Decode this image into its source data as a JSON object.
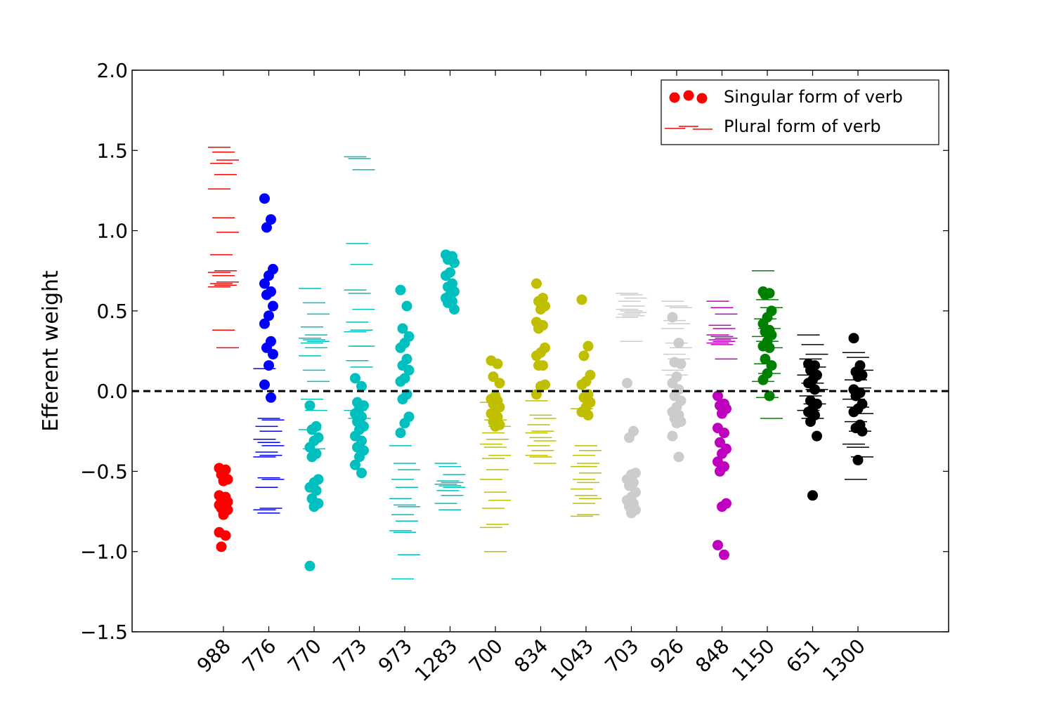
{
  "chart_data": {
    "type": "scatter",
    "title": "",
    "xlabel": "",
    "ylabel": "Efferent weight",
    "ylim": [
      -1.5,
      2.0
    ],
    "yticks": [
      "2.0",
      "1.5",
      "1.0",
      "0.5",
      "0.0",
      "−0.5",
      "−1.0",
      "−1.5"
    ],
    "ytick_values": [
      2.0,
      1.5,
      1.0,
      0.5,
      0.0,
      -0.5,
      -1.0,
      -1.5
    ],
    "reference_line": {
      "y": 0.0,
      "style": "dashed",
      "color": "#000000"
    },
    "legend": {
      "placement": "top-right",
      "entries": [
        {
          "label": "Singular form of verb",
          "marker": "circle",
          "color": "#ff0000"
        },
        {
          "label": "Plural form of verb",
          "marker": "hline",
          "color": "#ff0000"
        }
      ]
    },
    "categories": [
      "988",
      "776",
      "770",
      "773",
      "973",
      "1283",
      "700",
      "834",
      "1043",
      "703",
      "926",
      "848",
      "1150",
      "651",
      "1300"
    ],
    "series": [
      {
        "category": "988",
        "color": "#ff0000",
        "singular": [
          -0.48,
          -0.49,
          -0.52,
          -0.55,
          -0.56,
          -0.65,
          -0.66,
          -0.67,
          -0.69,
          -0.7,
          -0.71,
          -0.72,
          -0.73,
          -0.74,
          -0.77,
          -0.88,
          -0.9,
          -0.97
        ],
        "plural": [
          1.52,
          1.49,
          1.44,
          1.42,
          1.35,
          1.26,
          1.08,
          0.99,
          0.85,
          0.75,
          0.74,
          0.72,
          0.68,
          0.67,
          0.66,
          0.65,
          0.38,
          0.27
        ]
      },
      {
        "category": "776",
        "color": "#0000ff",
        "singular": [
          1.2,
          1.07,
          1.02,
          0.76,
          0.72,
          0.67,
          0.62,
          0.6,
          0.53,
          0.47,
          0.42,
          0.31,
          0.27,
          0.23,
          0.16,
          0.04,
          -0.04
        ],
        "plural": [
          0.14,
          -0.17,
          -0.18,
          -0.22,
          -0.25,
          -0.3,
          -0.32,
          -0.34,
          -0.38,
          -0.4,
          -0.41,
          -0.54,
          -0.55,
          -0.6,
          -0.73,
          -0.74,
          -0.76
        ]
      },
      {
        "category": "770",
        "color": "#00bfbf",
        "singular": [
          -0.09,
          -0.22,
          -0.24,
          -0.29,
          -0.31,
          -0.35,
          -0.39,
          -0.41,
          -0.55,
          -0.57,
          -0.6,
          -0.62,
          -0.67,
          -0.7,
          -0.72,
          -1.09
        ],
        "plural": [
          0.64,
          0.55,
          0.48,
          0.4,
          0.35,
          0.33,
          0.32,
          0.31,
          0.3,
          0.27,
          0.22,
          0.13,
          0.06,
          -0.05,
          -0.12,
          -0.24,
          -0.36
        ]
      },
      {
        "category": "773",
        "color": "#00bfbf",
        "singular": [
          0.08,
          0.03,
          -0.07,
          -0.09,
          -0.11,
          -0.14,
          -0.16,
          -0.19,
          -0.22,
          -0.24,
          -0.28,
          -0.31,
          -0.35,
          -0.37,
          -0.41,
          -0.46,
          -0.51
        ],
        "plural": [
          1.46,
          1.45,
          1.38,
          0.92,
          0.79,
          0.63,
          0.61,
          0.51,
          0.43,
          0.38,
          0.37,
          0.28,
          0.28,
          0.19,
          0.15,
          -0.12,
          -0.17
        ]
      },
      {
        "category": "973",
        "color": "#00bfbf",
        "singular": [
          0.63,
          0.53,
          0.39,
          0.34,
          0.3,
          0.27,
          0.2,
          0.16,
          0.13,
          0.08,
          0.06,
          -0.02,
          -0.05,
          -0.16,
          -0.2,
          -0.26
        ],
        "plural": [
          -0.34,
          -0.45,
          -0.49,
          -0.55,
          -0.6,
          -0.67,
          -0.71,
          -0.72,
          -0.77,
          -0.81,
          -0.87,
          -0.88,
          -1.02,
          -1.17
        ]
      },
      {
        "category": "1283",
        "color": "#00bfbf",
        "singular": [
          0.85,
          0.84,
          0.82,
          0.8,
          0.74,
          0.72,
          0.67,
          0.65,
          0.62,
          0.6,
          0.58,
          0.56,
          0.55,
          0.51
        ],
        "plural": [
          -0.45,
          -0.47,
          -0.52,
          -0.56,
          -0.57,
          -0.58,
          -0.59,
          -0.6,
          -0.62,
          -0.65,
          -0.7,
          -0.74
        ]
      },
      {
        "category": "700",
        "color": "#bfbf00",
        "singular": [
          0.19,
          0.17,
          0.09,
          0.05,
          -0.03,
          -0.05,
          -0.06,
          -0.08,
          -0.1,
          -0.12,
          -0.14,
          -0.16,
          -0.19,
          -0.21,
          -0.22
        ],
        "plural": [
          -0.07,
          -0.18,
          -0.22,
          -0.26,
          -0.3,
          -0.33,
          -0.35,
          -0.4,
          -0.42,
          -0.49,
          -0.55,
          -0.63,
          -0.68,
          -0.73,
          -0.83,
          -0.85,
          -1.0
        ]
      },
      {
        "category": "834",
        "color": "#bfbf00",
        "singular": [
          0.67,
          0.58,
          0.56,
          0.53,
          0.51,
          0.43,
          0.41,
          0.39,
          0.27,
          0.24,
          0.22,
          0.16,
          0.16,
          0.04,
          0.03,
          -0.02
        ],
        "plural": [
          -0.06,
          -0.15,
          -0.17,
          -0.21,
          -0.25,
          -0.26,
          -0.29,
          -0.31,
          -0.34,
          -0.37,
          -0.4,
          -0.41,
          -0.45
        ]
      },
      {
        "category": "1043",
        "color": "#bfbf00",
        "singular": [
          0.57,
          0.28,
          0.22,
          0.1,
          0.06,
          0.04,
          -0.02,
          -0.04,
          -0.07,
          -0.1,
          -0.13,
          -0.15
        ],
        "plural": [
          -0.11,
          -0.34,
          -0.37,
          -0.4,
          -0.45,
          -0.47,
          -0.47,
          -0.51,
          -0.55,
          -0.57,
          -0.61,
          -0.65,
          -0.67,
          -0.7,
          -0.77,
          -0.78
        ]
      },
      {
        "category": "703",
        "color": "#cccccc",
        "singular": [
          0.05,
          -0.25,
          -0.29,
          -0.51,
          -0.52,
          -0.55,
          -0.57,
          -0.59,
          -0.63,
          -0.66,
          -0.68,
          -0.7,
          -0.72,
          -0.74,
          -0.76
        ],
        "plural": [
          0.61,
          0.6,
          0.58,
          0.56,
          0.53,
          0.51,
          0.5,
          0.49,
          0.48,
          0.47,
          0.46,
          0.31
        ]
      },
      {
        "category": "926",
        "color": "#cccccc",
        "singular": [
          0.46,
          0.3,
          0.18,
          0.17,
          0.09,
          0.05,
          0.01,
          -0.03,
          -0.06,
          -0.1,
          -0.13,
          -0.15,
          -0.17,
          -0.19,
          -0.2,
          -0.28,
          -0.41
        ],
        "plural": [
          0.56,
          0.53,
          0.52,
          0.44,
          0.42,
          0.39,
          0.3,
          0.27,
          0.23,
          0.2,
          0.13,
          0.1
        ]
      },
      {
        "category": "848",
        "color": "#bf00bf",
        "singular": [
          -0.03,
          -0.08,
          -0.09,
          -0.11,
          -0.14,
          -0.23,
          -0.26,
          -0.32,
          -0.36,
          -0.39,
          -0.44,
          -0.47,
          -0.5,
          -0.7,
          -0.72,
          -0.96,
          -1.02
        ],
        "plural": [
          0.56,
          0.52,
          0.48,
          0.41,
          0.39,
          0.35,
          0.34,
          0.33,
          0.32,
          0.31,
          0.3,
          0.29,
          0.2
        ]
      },
      {
        "category": "1150",
        "color": "#008000",
        "singular": [
          0.62,
          0.61,
          0.6,
          0.5,
          0.46,
          0.42,
          0.38,
          0.37,
          0.35,
          0.31,
          0.28,
          0.27,
          0.2,
          0.16,
          0.11,
          0.07,
          -0.03
        ],
        "plural": [
          0.75,
          0.57,
          0.52,
          0.45,
          0.39,
          0.34,
          0.31,
          0.27,
          0.17,
          0.11,
          0.06,
          -0.04,
          -0.17
        ]
      },
      {
        "category": "651",
        "color": "#000000",
        "singular": [
          0.17,
          0.16,
          0.13,
          0.1,
          0.07,
          0.05,
          0.01,
          -0.06,
          -0.08,
          -0.11,
          -0.13,
          -0.15,
          -0.19,
          -0.28,
          -0.65
        ],
        "plural": [
          0.35,
          0.29,
          0.23,
          0.2,
          0.15,
          0.1,
          0.05,
          0.01,
          -0.03,
          -0.08,
          -0.12,
          -0.17
        ]
      },
      {
        "category": "1300",
        "color": "#000000",
        "singular": [
          0.33,
          0.16,
          0.12,
          0.1,
          0.09,
          0.01,
          -0.01,
          -0.03,
          -0.08,
          -0.11,
          -0.13,
          -0.21,
          -0.23,
          -0.25,
          -0.43
        ],
        "plural": [
          0.24,
          0.21,
          0.13,
          0.07,
          0.02,
          -0.05,
          -0.1,
          -0.14,
          -0.19,
          -0.25,
          -0.33,
          -0.35,
          -0.41,
          -0.55
        ]
      }
    ]
  }
}
